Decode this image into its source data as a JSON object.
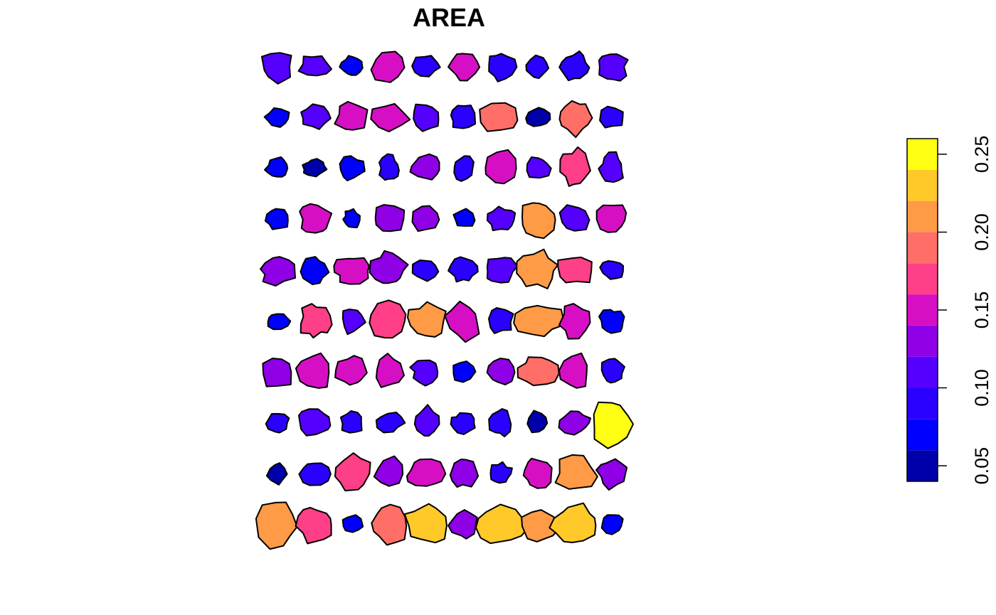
{
  "chart_data": {
    "type": "heatmap",
    "title": "AREA",
    "legend_position": "right",
    "grid": false,
    "color_breaks": [
      0.04,
      0.06,
      0.08,
      0.1,
      0.12,
      0.14,
      0.16,
      0.18,
      0.2,
      0.22,
      0.24,
      0.26
    ],
    "colors": [
      "#0000AA",
      "#0000FF",
      "#2A00FF",
      "#5500FF",
      "#8F00E6",
      "#D70FC4",
      "#FF3F87",
      "#FF6F67",
      "#FF9B46",
      "#FFC92A",
      "#FFFF11"
    ],
    "ticks": [
      {
        "value": 0.05,
        "label": "0.05"
      },
      {
        "value": 0.1,
        "label": "0.10"
      },
      {
        "value": 0.15,
        "label": "0.15"
      },
      {
        "value": 0.2,
        "label": "0.20"
      },
      {
        "value": 0.25,
        "label": "0.25"
      }
    ],
    "regions": [
      [
        0.113,
        0.101,
        0.077,
        0.142,
        0.092,
        0.156,
        0.098,
        0.084,
        0.094,
        0.114
      ],
      [
        0.074,
        0.101,
        0.153,
        0.143,
        0.103,
        0.081,
        0.186,
        0.058,
        0.187,
        0.083
      ],
      [
        0.072,
        0.052,
        0.075,
        0.082,
        0.126,
        0.096,
        0.16,
        0.101,
        0.164,
        0.111
      ],
      [
        0.07,
        0.155,
        0.061,
        0.136,
        0.128,
        0.07,
        0.115,
        0.203,
        0.118,
        0.146
      ],
      [
        0.129,
        0.078,
        0.141,
        0.137,
        0.096,
        0.082,
        0.106,
        0.201,
        0.17,
        0.092
      ],
      [
        0.064,
        0.161,
        0.109,
        0.164,
        0.206,
        0.151,
        0.085,
        0.205,
        0.149,
        0.07
      ],
      [
        0.13,
        0.143,
        0.147,
        0.148,
        0.112,
        0.079,
        0.132,
        0.182,
        0.153,
        0.088
      ],
      [
        0.086,
        0.115,
        0.087,
        0.085,
        0.109,
        0.091,
        0.093,
        0.051,
        0.122,
        0.253
      ],
      [
        0.055,
        0.095,
        0.168,
        0.131,
        0.16,
        0.121,
        0.082,
        0.157,
        0.208,
        0.128
      ],
      [
        0.207,
        0.161,
        0.072,
        0.188,
        0.23,
        0.128,
        0.23,
        0.208,
        0.233,
        0.065
      ]
    ]
  }
}
